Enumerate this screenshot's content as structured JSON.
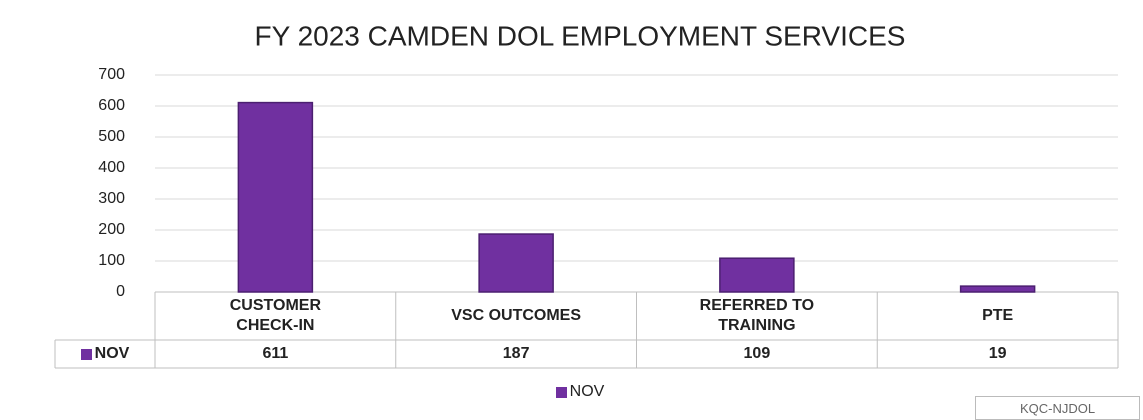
{
  "chart_data": {
    "type": "bar",
    "title": "FY 2023 CAMDEN DOL EMPLOYMENT SERVICES",
    "categories": [
      "CUSTOMER CHECK-IN",
      "VSC OUTCOMES",
      "REFERRED TO TRAINING",
      "PTE"
    ],
    "series": [
      {
        "name": "NOV",
        "color": "#7030a0",
        "values": [
          611,
          187,
          109,
          19
        ]
      }
    ],
    "ylim": [
      0,
      700
    ],
    "yticks": [
      0,
      100,
      200,
      300,
      400,
      500,
      600,
      700
    ],
    "grid": true,
    "legend": "bottom"
  },
  "watermark": "KQC-NJDOL"
}
